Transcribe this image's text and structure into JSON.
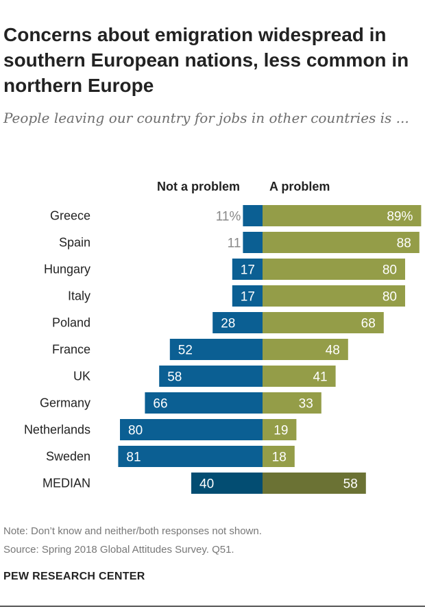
{
  "chart_data": {
    "type": "bar",
    "orientation": "horizontal-diverging",
    "title": "Concerns about emigration widespread in southern European nations, less common in northern Europe",
    "subtitle": "People leaving our country for jobs in other countries is ...",
    "categories": [
      "Greece",
      "Spain",
      "Hungary",
      "Italy",
      "Poland",
      "France",
      "UK",
      "Germany",
      "Netherlands",
      "Sweden",
      "MEDIAN"
    ],
    "value_labels_left": [
      "11%",
      "11",
      "17",
      "17",
      "28",
      "52",
      "58",
      "66",
      "80",
      "81",
      "40"
    ],
    "value_labels_right": [
      "89%",
      "88",
      "80",
      "80",
      "68",
      "48",
      "41",
      "33",
      "19",
      "18",
      "58"
    ],
    "series": [
      {
        "name": "Not a problem",
        "values": [
          11,
          11,
          17,
          17,
          28,
          52,
          58,
          66,
          80,
          81,
          40
        ],
        "color": "#0b5f93",
        "median_color": "#034d72"
      },
      {
        "name": "A problem",
        "values": [
          89,
          88,
          80,
          80,
          68,
          48,
          41,
          33,
          19,
          18,
          58
        ],
        "color": "#949d48",
        "median_color": "#6b7234"
      }
    ],
    "xlim": [
      -100,
      100
    ]
  },
  "note": "Note: Don’t know and neither/both responses not shown.",
  "source": "Source: Spring 2018 Global Attitudes Survey. Q51.",
  "brand": "PEW RESEARCH CENTER"
}
